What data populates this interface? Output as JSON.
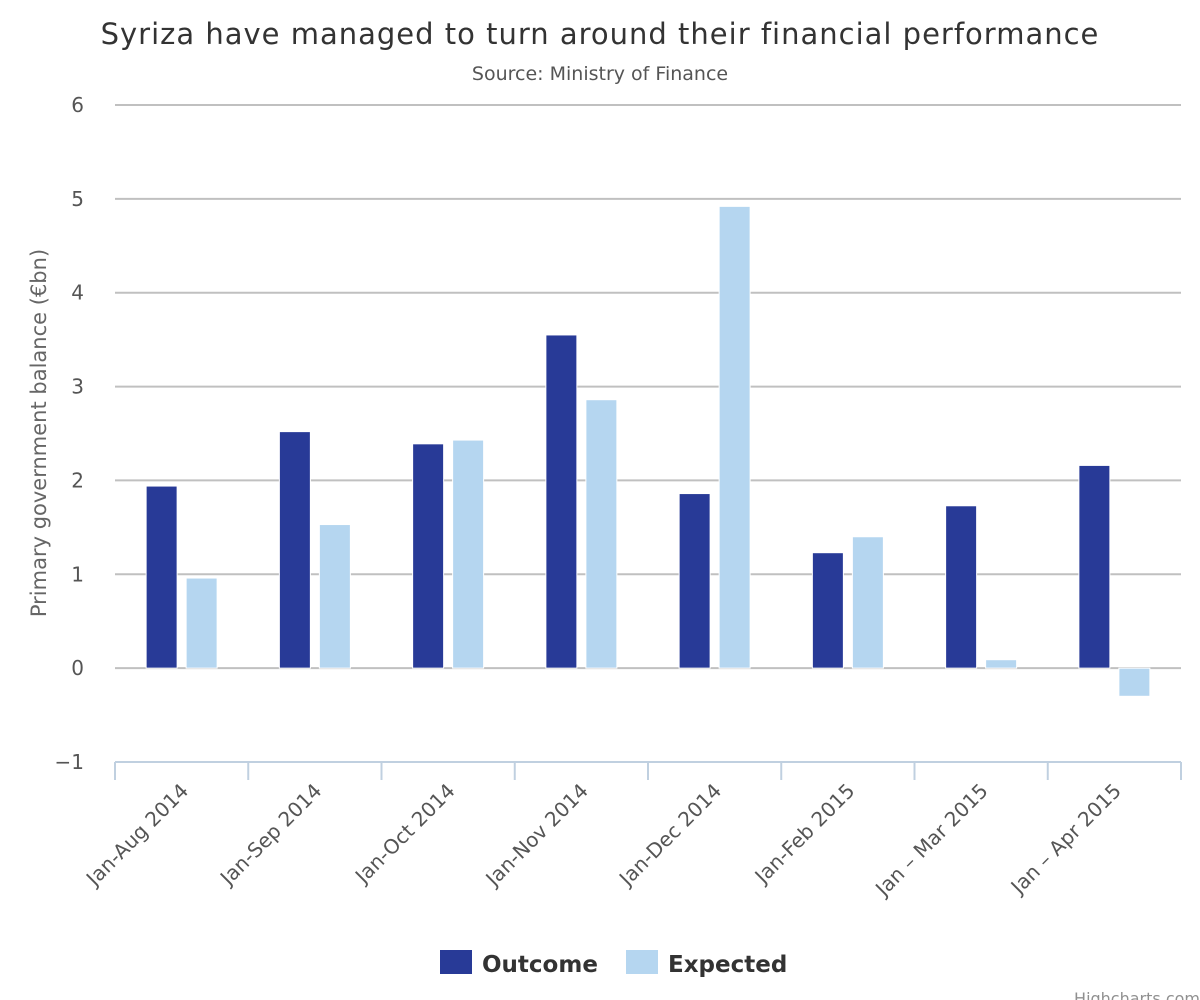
{
  "chart_data": {
    "type": "bar",
    "title": "Syriza have managed to turn around their financial performance",
    "subtitle": "Source: Ministry of Finance",
    "xlabel": "",
    "ylabel": "Primary government balance (€bn)",
    "ylim": [
      -1,
      6
    ],
    "yticks": [
      -1,
      0,
      1,
      2,
      3,
      4,
      5,
      6
    ],
    "grid": true,
    "legend_position": "bottom-center",
    "categories": [
      "Jan-Aug 2014",
      "Jan-Sep 2014",
      "Jan-Oct 2014",
      "Jan-Nov 2014",
      "Jan-Dec 2014",
      "Jan-Feb 2015",
      "Jan – Mar 2015",
      "Jan – Apr 2015"
    ],
    "series": [
      {
        "name": "Outcome",
        "color": "#283A97",
        "values": [
          1.94,
          2.52,
          2.39,
          3.55,
          1.86,
          1.23,
          1.73,
          2.16
        ]
      },
      {
        "name": "Expected",
        "color": "#B5D6F0",
        "values": [
          0.96,
          1.53,
          2.43,
          2.86,
          4.92,
          1.4,
          0.09,
          -0.3
        ]
      }
    ],
    "credits": "Highcharts.com"
  }
}
